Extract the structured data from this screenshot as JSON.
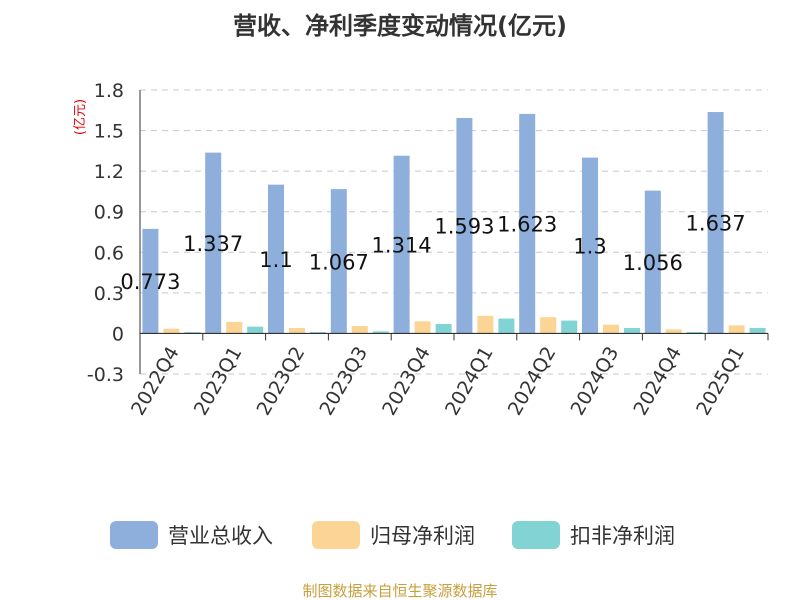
{
  "chart_data": {
    "type": "bar",
    "title": "营收、净利季度变动情况(亿元)",
    "ylabel": "(亿元)",
    "ylim": [
      -0.3,
      1.8
    ],
    "yticks": [
      "-0.3",
      "0",
      "0.3",
      "0.6",
      "0.9",
      "1.2",
      "1.5",
      "1.8"
    ],
    "grid": true,
    "legend_position": "bottom",
    "categories": [
      "2022Q4",
      "2023Q1",
      "2023Q2",
      "2023Q3",
      "2023Q4",
      "2024Q1",
      "2024Q2",
      "2024Q3",
      "2024Q4",
      "2025Q1"
    ],
    "series": [
      {
        "name": "营业总收入",
        "color": "#8eaedb",
        "values": [
          0.773,
          1.337,
          1.1,
          1.067,
          1.314,
          1.593,
          1.623,
          1.3,
          1.056,
          1.637
        ],
        "labels": [
          "0.773",
          "1.337",
          "1.1",
          "1.067",
          "1.314",
          "1.593",
          "1.623",
          "1.3",
          "1.056",
          "1.637"
        ]
      },
      {
        "name": "归母净利润",
        "color": "#fcd596",
        "values": [
          0.035,
          0.085,
          0.04,
          0.055,
          0.09,
          0.13,
          0.12,
          0.065,
          0.03,
          0.06
        ]
      },
      {
        "name": "扣非净利润",
        "color": "#82d4d4",
        "values": [
          0.01,
          0.05,
          0.01,
          0.015,
          0.07,
          0.11,
          0.095,
          0.04,
          0.01,
          0.04
        ]
      }
    ]
  },
  "footer": {
    "source": "制图数据来自恒生聚源数据库"
  }
}
